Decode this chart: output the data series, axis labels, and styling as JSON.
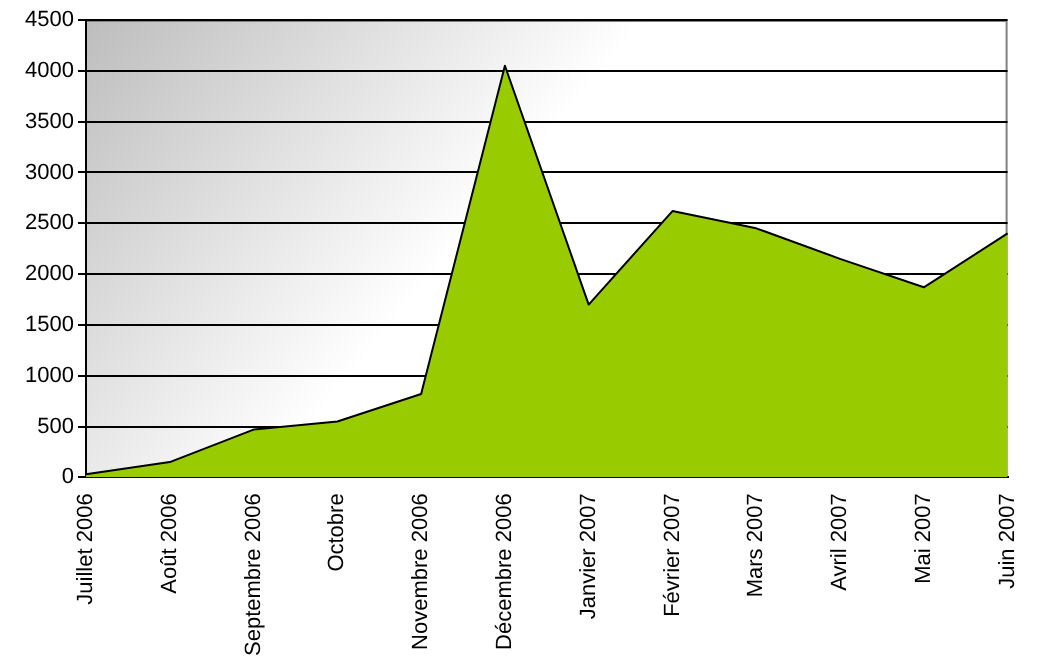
{
  "chart_data": {
    "type": "area",
    "categories": [
      "Juillet 2006",
      "Août 2006",
      "Septembre 2006",
      "Octobre",
      "Novembre 2006",
      "Décembre 2006",
      "Janvier 2007",
      "Février 2007",
      "Mars 2007",
      "Avril 2007",
      "Mai 2007",
      "Juin 2007"
    ],
    "series": [
      {
        "color": "#99cc00",
        "values": [
          30,
          150,
          470,
          550,
          820,
          4050,
          1700,
          2620,
          2450,
          2150,
          1870,
          2400
        ]
      }
    ],
    "ylim": [
      0,
      4500
    ],
    "yticks": [
      0,
      500,
      1000,
      1500,
      2000,
      2500,
      3000,
      3500,
      4000,
      4500
    ],
    "grid": "y",
    "legend": false
  }
}
